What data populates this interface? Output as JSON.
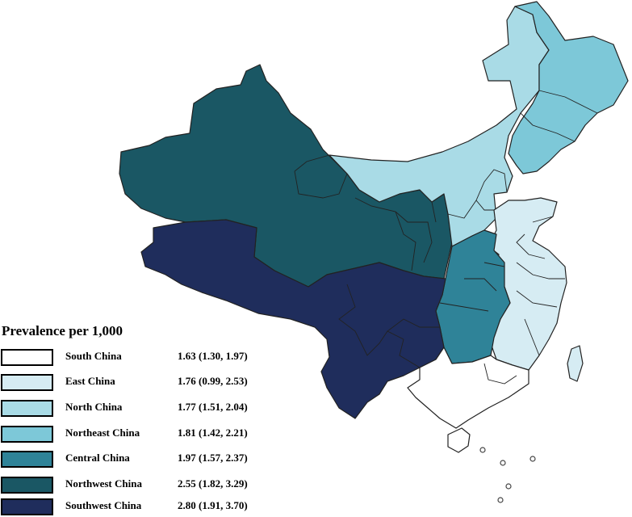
{
  "legend": {
    "title": "Prevalence per 1,000",
    "items": [
      {
        "region": "South China",
        "value": "1.63 (1.30, 1.97)",
        "color": "#ffffff"
      },
      {
        "region": "East China",
        "value": "1.76 (0.99, 2.53)",
        "color": "#d6ecf3"
      },
      {
        "region": "North China",
        "value": "1.77 (1.51, 2.04)",
        "color": "#a9dbe6"
      },
      {
        "region": "Northeast China",
        "value": "1.81 (1.42, 2.21)",
        "color": "#7dc8d8"
      },
      {
        "region": "Central China",
        "value": "1.97 (1.57, 2.37)",
        "color": "#2f8398"
      },
      {
        "region": "Northwest China",
        "value": "2.55 (1.82, 3.29)",
        "color": "#1a5764"
      },
      {
        "region": "Southwest China",
        "value": "2.80 (1.91, 3.70)",
        "color": "#1f2d5c"
      }
    ]
  }
}
